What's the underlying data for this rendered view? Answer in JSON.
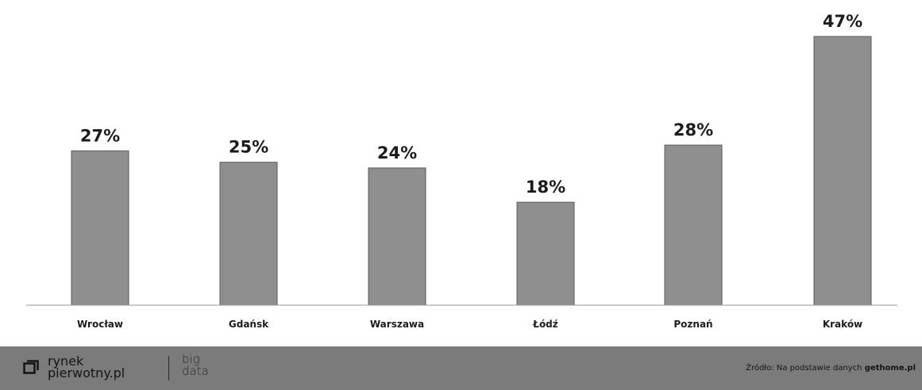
{
  "chart_data": {
    "type": "bar",
    "categories": [
      "Wrocław",
      "Gdańsk",
      "Warszawa",
      "Łódź",
      "Poznań",
      "Kraków"
    ],
    "values": [
      27,
      25,
      24,
      18,
      28,
      47
    ],
    "value_labels": [
      "27%",
      "25%",
      "24%",
      "18%",
      "28%",
      "47%"
    ],
    "unit": "%",
    "ylim": [
      0,
      47
    ],
    "grid": false,
    "legend": "none",
    "bar_color": "#8f8f8f"
  },
  "footer": {
    "brand_line1": "rynek",
    "brand_line2": "pierwotny.pl",
    "bigdata_line1": "big",
    "bigdata_line2": "data",
    "source_prefix": "Źródło: Na podstawie danych ",
    "source_name": "gethome.pl",
    "background": "#7b7b7b"
  }
}
